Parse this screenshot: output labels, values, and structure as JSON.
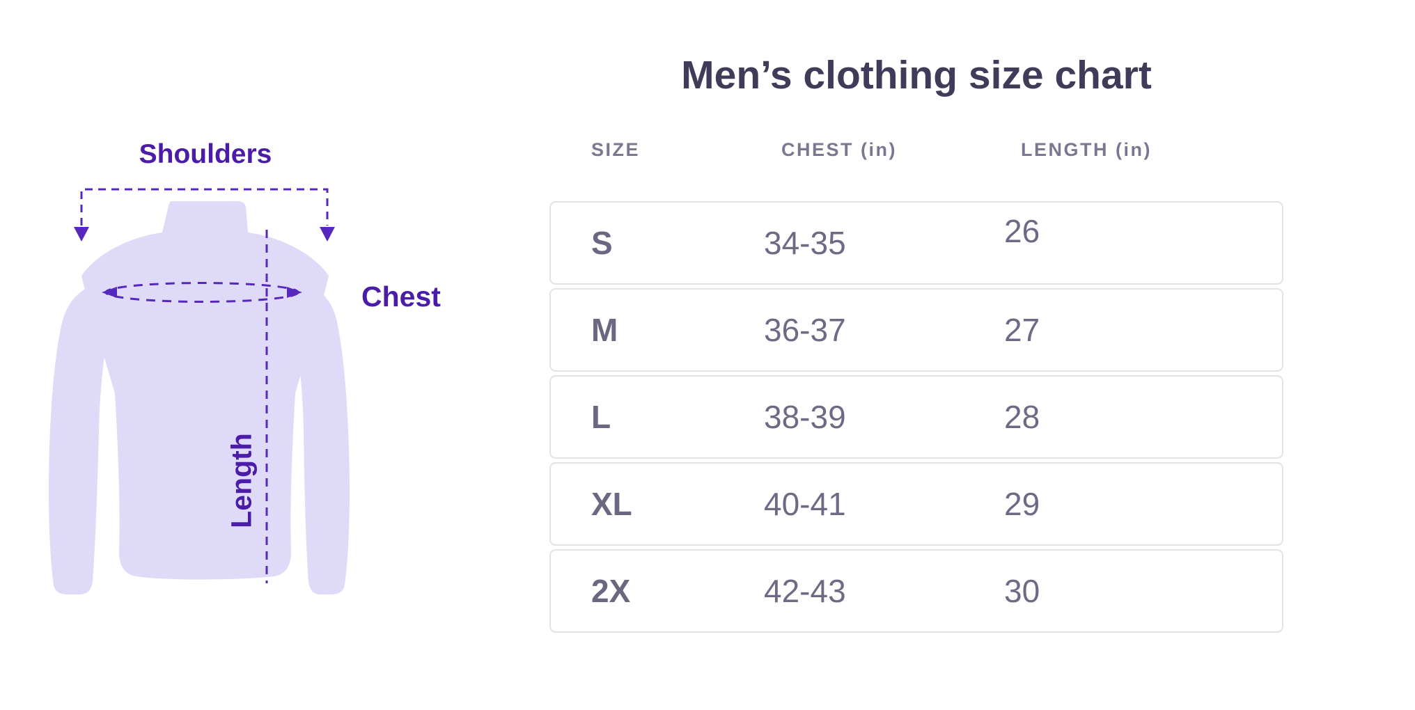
{
  "illustration": {
    "labels": {
      "shoulders": "Shoulders",
      "chest": "Chest",
      "length": "Length"
    },
    "colors": {
      "shirt_fill": "#dedaf7",
      "annotation_stroke": "#5628bd",
      "annotation_text": "#4a1ca8"
    }
  },
  "size_chart": {
    "title": "Men’s clothing size chart",
    "columns": [
      "SIZE",
      "CHEST (in)",
      "LENGTH (in)"
    ],
    "rows": [
      {
        "size": "S",
        "chest": "34-35",
        "length": "26"
      },
      {
        "size": "M",
        "chest": "36-37",
        "length": "27"
      },
      {
        "size": "L",
        "chest": "38-39",
        "length": "28"
      },
      {
        "size": "XL",
        "chest": "40-41",
        "length": "29"
      },
      {
        "size": "2X",
        "chest": "42-43",
        "length": "30"
      }
    ],
    "colors": {
      "title": "#3e3c58",
      "header": "#7b7790",
      "cell": "#6e6a85",
      "border": "#e3e3e3"
    }
  },
  "chart_data": {
    "type": "table",
    "title": "Men’s clothing size chart",
    "columns": [
      "SIZE",
      "CHEST (in)",
      "LENGTH (in)"
    ],
    "rows": [
      [
        "S",
        "34-35",
        "26"
      ],
      [
        "M",
        "36-37",
        "27"
      ],
      [
        "L",
        "38-39",
        "28"
      ],
      [
        "XL",
        "40-41",
        "29"
      ],
      [
        "2X",
        "42-43",
        "30"
      ]
    ],
    "annotations": [
      "Shoulders",
      "Chest",
      "Length"
    ]
  }
}
